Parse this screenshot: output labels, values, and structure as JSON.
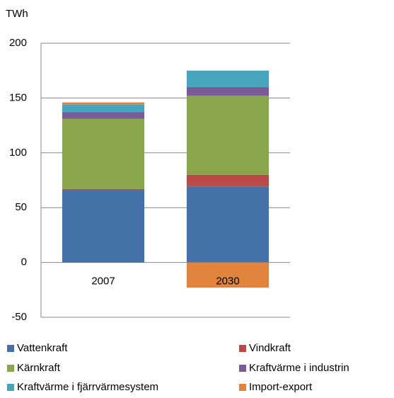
{
  "chart_data": {
    "type": "stacked_bar",
    "y_axis_label": "TWh",
    "categories": [
      "2007",
      "2030"
    ],
    "series": [
      {
        "name": "Vattenkraft",
        "color": "#4472a8",
        "values": [
          66,
          69
        ]
      },
      {
        "name": "Vindkraft",
        "color": "#b94a48",
        "values": [
          1,
          11
        ]
      },
      {
        "name": "Kärnkraft",
        "color": "#8aa64a",
        "values": [
          64,
          72
        ]
      },
      {
        "name": "Kraftvärme i industrin",
        "color": "#7a5a98",
        "values": [
          6,
          8
        ]
      },
      {
        "name": "Kraftvärme i fjärrvärmesystem",
        "color": "#44a5bc",
        "values": [
          7,
          15
        ]
      },
      {
        "name": "Import-export",
        "color": "#e0843d",
        "values": [
          2,
          -23
        ]
      }
    ],
    "ylim": [
      -50,
      200
    ],
    "yticks": [
      -50,
      0,
      50,
      100,
      150,
      200
    ],
    "grid": true
  }
}
